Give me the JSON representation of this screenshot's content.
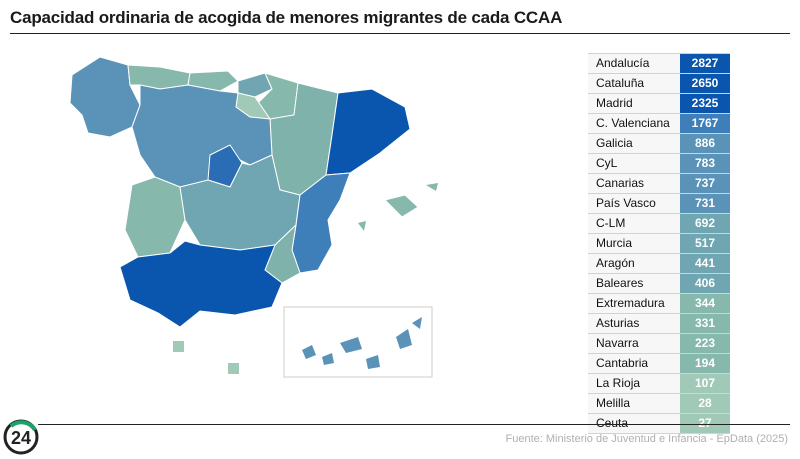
{
  "header": {
    "title": "Capacidad ordinaria de acogida de menores migrantes de cada CCAA"
  },
  "footer": {
    "source": "Fuente: Ministerio de Juventud e Infancia - EpData (2025)",
    "logo_text": "24"
  },
  "colors": {
    "dark": "#0a55ad",
    "mid_dark": "#3f7fb9",
    "mid": "#5b93b8",
    "teal": "#6fa6b1",
    "light": "#86b8ac",
    "lighter": "#a1c9b7"
  },
  "chart_data": {
    "type": "table",
    "categories": [
      "Andalucía",
      "Cataluña",
      "Madrid",
      "C. Valenciana",
      "Galicia",
      "CyL",
      "Canarias",
      "País Vasco",
      "C-LM",
      "Murcia",
      "Aragón",
      "Baleares",
      "Extremadura",
      "Asturias",
      "Navarra",
      "Cantabria",
      "La Rioja",
      "Melilla",
      "Ceuta"
    ],
    "values": [
      2827,
      2650,
      2325,
      1767,
      886,
      783,
      737,
      731,
      692,
      517,
      441,
      406,
      344,
      331,
      223,
      194,
      107,
      28,
      27
    ]
  }
}
